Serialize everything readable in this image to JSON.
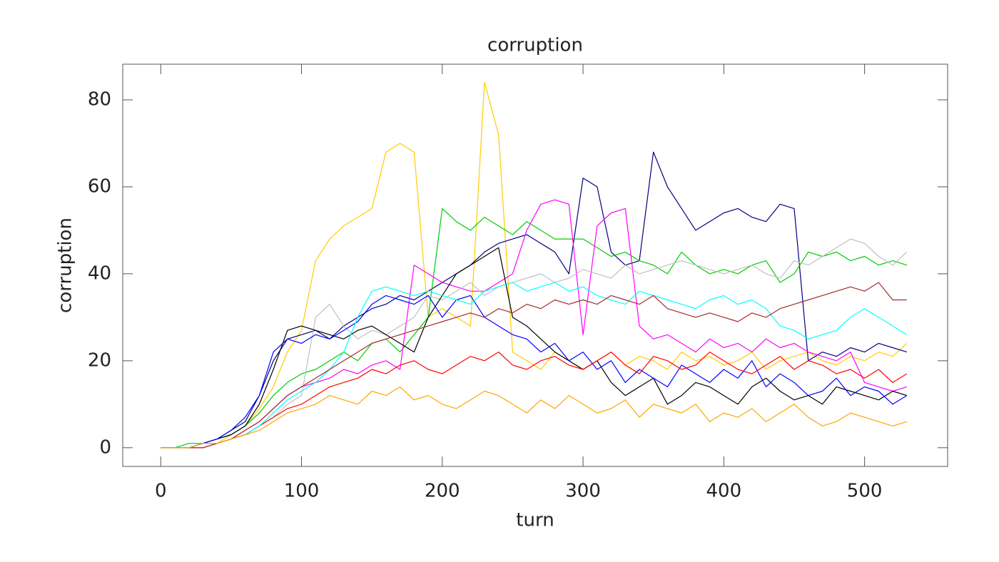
{
  "chart_data": {
    "type": "line",
    "title": "corruption",
    "x_label": "turn",
    "y_label": "corruption",
    "x": [
      0,
      10,
      20,
      30,
      40,
      50,
      60,
      70,
      80,
      90,
      100,
      110,
      120,
      130,
      140,
      150,
      160,
      170,
      180,
      190,
      200,
      210,
      220,
      230,
      240,
      250,
      260,
      270,
      280,
      290,
      300,
      310,
      320,
      330,
      340,
      350,
      360,
      370,
      380,
      390,
      400,
      410,
      420,
      430,
      440,
      450,
      460,
      470,
      480,
      490,
      500,
      510,
      520,
      530
    ],
    "xlim": [
      -27,
      559
    ],
    "ylim": [
      -4.3,
      88.2
    ],
    "xticks": [
      0,
      100,
      200,
      300,
      400,
      500
    ],
    "yticks": [
      0,
      20,
      40,
      60,
      80
    ],
    "series": [
      {
        "color": "#ffcc00",
        "values": [
          0,
          0,
          0,
          1,
          1,
          3,
          5,
          9,
          14,
          22,
          27,
          43,
          48,
          51,
          53,
          55,
          68,
          70,
          68,
          30,
          32,
          30,
          28,
          84,
          72,
          22,
          20,
          18,
          22,
          20,
          18,
          20,
          22,
          19,
          21,
          20,
          18,
          22,
          20,
          21,
          19,
          20,
          22,
          18,
          20,
          21,
          22,
          20,
          19,
          21,
          20,
          22,
          21,
          24
        ]
      },
      {
        "color": "#000080",
        "values": [
          0,
          0,
          0,
          1,
          2,
          4,
          6,
          12,
          20,
          25,
          26,
          27,
          25,
          28,
          30,
          32,
          33,
          35,
          34,
          36,
          38,
          40,
          42,
          45,
          47,
          48,
          49,
          47,
          45,
          40,
          62,
          60,
          45,
          42,
          43,
          68,
          60,
          55,
          50,
          52,
          54,
          55,
          53,
          52,
          56,
          55,
          20,
          22,
          21,
          23,
          22,
          24,
          23,
          22
        ]
      },
      {
        "color": "#00cc00",
        "values": [
          0,
          0,
          1,
          1,
          2,
          3,
          5,
          8,
          12,
          15,
          17,
          18,
          20,
          22,
          20,
          24,
          25,
          22,
          26,
          30,
          55,
          52,
          50,
          53,
          51,
          49,
          52,
          50,
          48,
          48,
          48,
          46,
          44,
          45,
          43,
          42,
          40,
          45,
          42,
          40,
          41,
          40,
          42,
          43,
          38,
          40,
          45,
          44,
          45,
          43,
          44,
          42,
          43,
          42
        ]
      },
      {
        "color": "#ff00ff",
        "values": [
          0,
          0,
          0,
          1,
          1,
          2,
          4,
          6,
          9,
          12,
          14,
          15,
          16,
          18,
          17,
          19,
          20,
          18,
          42,
          40,
          38,
          37,
          36,
          36,
          38,
          40,
          50,
          56,
          57,
          56,
          26,
          51,
          54,
          55,
          28,
          25,
          26,
          24,
          22,
          25,
          23,
          24,
          22,
          25,
          23,
          24,
          22,
          21,
          20,
          22,
          15,
          14,
          13,
          14
        ]
      },
      {
        "color": "#c0c0c0",
        "values": [
          0,
          0,
          0,
          0,
          1,
          2,
          3,
          5,
          7,
          10,
          12,
          30,
          33,
          28,
          25,
          27,
          26,
          28,
          30,
          35,
          34,
          36,
          38,
          35,
          37,
          38,
          39,
          40,
          38,
          39,
          41,
          40,
          39,
          42,
          40,
          41,
          42,
          43,
          42,
          41,
          40,
          41,
          42,
          40,
          39,
          43,
          42,
          44,
          46,
          48,
          47,
          44,
          42,
          45
        ]
      },
      {
        "color": "#000000",
        "values": [
          0,
          0,
          0,
          1,
          2,
          3,
          5,
          10,
          18,
          27,
          28,
          27,
          26,
          25,
          27,
          28,
          26,
          24,
          22,
          30,
          35,
          40,
          42,
          44,
          46,
          30,
          28,
          25,
          22,
          20,
          18,
          20,
          15,
          12,
          14,
          16,
          10,
          12,
          15,
          14,
          12,
          10,
          14,
          16,
          13,
          11,
          12,
          10,
          14,
          13,
          12,
          11,
          13,
          12
        ]
      },
      {
        "color": "#0000ff",
        "values": [
          0,
          0,
          0,
          1,
          2,
          4,
          7,
          12,
          22,
          25,
          24,
          26,
          25,
          27,
          29,
          33,
          35,
          34,
          33,
          35,
          30,
          34,
          35,
          30,
          28,
          26,
          25,
          22,
          24,
          20,
          22,
          18,
          20,
          15,
          18,
          16,
          14,
          19,
          17,
          15,
          18,
          16,
          20,
          14,
          17,
          15,
          12,
          13,
          16,
          12,
          14,
          13,
          10,
          12
        ]
      },
      {
        "color": "#ff0000",
        "values": [
          0,
          0,
          0,
          0,
          1,
          2,
          3,
          5,
          7,
          9,
          10,
          12,
          14,
          15,
          16,
          18,
          17,
          19,
          20,
          18,
          17,
          19,
          21,
          20,
          22,
          19,
          18,
          20,
          21,
          19,
          18,
          20,
          22,
          19,
          17,
          21,
          20,
          18,
          19,
          22,
          20,
          18,
          17,
          19,
          21,
          18,
          20,
          19,
          17,
          18,
          16,
          18,
          15,
          17
        ]
      },
      {
        "color": "#00ffff",
        "values": [
          0,
          0,
          0,
          1,
          1,
          2,
          3,
          5,
          8,
          11,
          13,
          15,
          18,
          22,
          30,
          36,
          37,
          36,
          35,
          36,
          35,
          34,
          33,
          36,
          37,
          38,
          36,
          37,
          38,
          36,
          37,
          35,
          34,
          33,
          36,
          35,
          34,
          33,
          32,
          34,
          35,
          33,
          34,
          32,
          28,
          27,
          25,
          26,
          27,
          30,
          32,
          30,
          28,
          26
        ]
      },
      {
        "color": "#a52a2a",
        "values": [
          0,
          0,
          0,
          0,
          1,
          2,
          4,
          6,
          9,
          12,
          14,
          16,
          18,
          20,
          22,
          24,
          25,
          26,
          27,
          28,
          29,
          30,
          31,
          30,
          32,
          31,
          33,
          32,
          34,
          33,
          34,
          33,
          35,
          34,
          33,
          35,
          32,
          31,
          30,
          31,
          30,
          29,
          31,
          30,
          32,
          33,
          34,
          35,
          36,
          37,
          36,
          38,
          34,
          34
        ]
      },
      {
        "color": "#ffa500",
        "values": [
          0,
          0,
          0,
          1,
          1,
          2,
          3,
          4,
          6,
          8,
          9,
          10,
          12,
          11,
          10,
          13,
          12,
          14,
          11,
          12,
          10,
          9,
          11,
          13,
          12,
          10,
          8,
          11,
          9,
          12,
          10,
          8,
          9,
          11,
          7,
          10,
          9,
          8,
          10,
          6,
          8,
          7,
          9,
          6,
          8,
          10,
          7,
          5,
          6,
          8,
          7,
          6,
          5,
          6
        ]
      }
    ]
  }
}
